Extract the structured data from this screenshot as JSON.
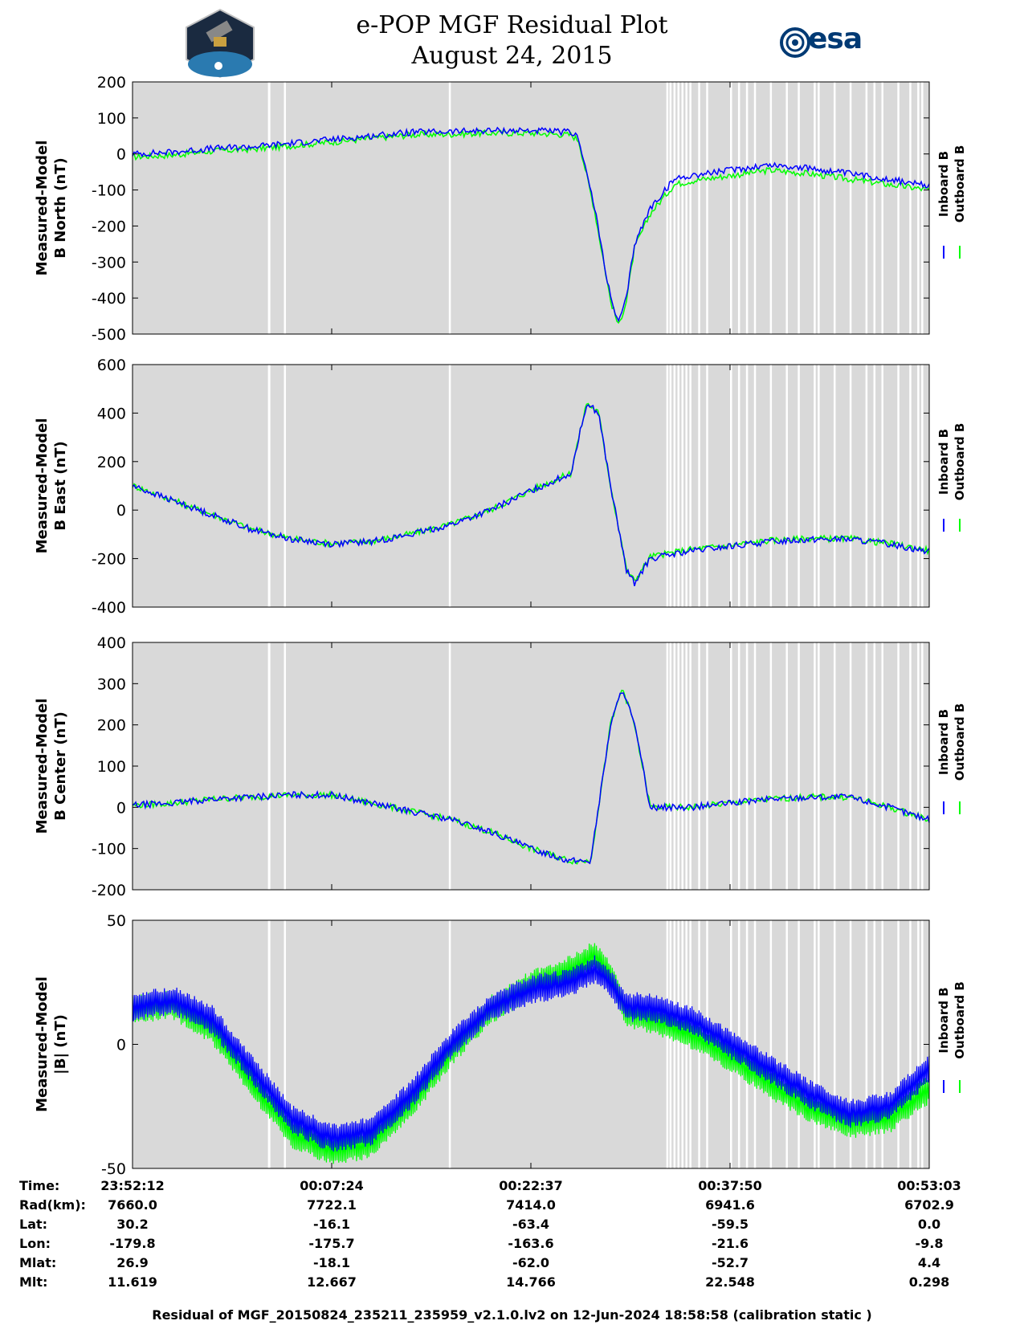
{
  "header": {
    "title_line1": "e-POP MGF Residual Plot",
    "title_line2": "August 24, 2015",
    "logo_left": "cassiope",
    "logo_right": "esa"
  },
  "colors": {
    "inboard": "#0000ff",
    "outboard": "#00ff00",
    "background": "#d9d9d9",
    "gap": "#ffffff"
  },
  "chart_data": [
    {
      "type": "line",
      "name": "b-north",
      "ylabel_line1": "Measured-Model",
      "ylabel_line2": "B North (nT)",
      "ylim": [
        -500,
        200
      ],
      "yticks": [
        "200",
        "100",
        "0",
        "-100",
        "-200",
        "-300",
        "-400",
        "-500"
      ],
      "legend": [
        "Inboard B",
        "Outboard B"
      ],
      "series": [
        {
          "name": "Inboard B",
          "x": [
            0,
            0.05,
            0.1,
            0.15,
            0.2,
            0.25,
            0.3,
            0.35,
            0.4,
            0.45,
            0.5,
            0.55,
            0.56,
            0.58,
            0.6,
            0.61,
            0.62,
            0.63,
            0.65,
            0.68,
            0.7,
            0.75,
            0.8,
            0.85,
            0.9,
            0.95,
            1.0
          ],
          "values": [
            0,
            5,
            15,
            20,
            30,
            40,
            50,
            60,
            62,
            65,
            65,
            60,
            45,
            -150,
            -400,
            -470,
            -400,
            -250,
            -150,
            -70,
            -60,
            -45,
            -30,
            -40,
            -55,
            -70,
            -90
          ]
        },
        {
          "name": "Outboard B",
          "x": [
            0,
            0.05,
            0.1,
            0.15,
            0.2,
            0.25,
            0.3,
            0.35,
            0.4,
            0.45,
            0.5,
            0.55,
            0.56,
            0.58,
            0.6,
            0.61,
            0.62,
            0.63,
            0.65,
            0.68,
            0.7,
            0.75,
            0.8,
            0.85,
            0.9,
            0.95,
            1.0
          ],
          "values": [
            -8,
            -3,
            8,
            13,
            23,
            33,
            43,
            53,
            55,
            58,
            58,
            53,
            38,
            -157,
            -407,
            -477,
            -407,
            -262,
            -165,
            -85,
            -75,
            -60,
            -45,
            -55,
            -70,
            -85,
            -100
          ]
        }
      ]
    },
    {
      "type": "line",
      "name": "b-east",
      "ylabel_line1": "Measured-Model",
      "ylabel_line2": "B East (nT)",
      "ylim": [
        -400,
        600
      ],
      "yticks": [
        "600",
        "400",
        "200",
        "0",
        "-200",
        "-400"
      ],
      "legend": [
        "Inboard B",
        "Outboard B"
      ],
      "series": [
        {
          "name": "Inboard B",
          "x": [
            0,
            0.05,
            0.1,
            0.15,
            0.2,
            0.25,
            0.3,
            0.35,
            0.4,
            0.45,
            0.5,
            0.55,
            0.57,
            0.585,
            0.6,
            0.62,
            0.63,
            0.65,
            0.7,
            0.75,
            0.8,
            0.85,
            0.9,
            0.95,
            1.0
          ],
          "values": [
            100,
            40,
            -20,
            -80,
            -120,
            -140,
            -130,
            -100,
            -60,
            0,
            80,
            150,
            440,
            400,
            100,
            -250,
            -300,
            -200,
            -170,
            -150,
            -130,
            -120,
            -120,
            -140,
            -170
          ]
        },
        {
          "name": "Outboard B",
          "x": [
            0,
            0.05,
            0.1,
            0.15,
            0.2,
            0.25,
            0.3,
            0.35,
            0.4,
            0.45,
            0.5,
            0.55,
            0.57,
            0.585,
            0.6,
            0.62,
            0.63,
            0.65,
            0.7,
            0.75,
            0.8,
            0.85,
            0.9,
            0.95,
            1.0
          ],
          "values": [
            102,
            42,
            -18,
            -78,
            -118,
            -138,
            -128,
            -98,
            -58,
            2,
            82,
            152,
            442,
            402,
            102,
            -245,
            -292,
            -192,
            -162,
            -145,
            -125,
            -117,
            -118,
            -138,
            -166
          ]
        }
      ]
    },
    {
      "type": "line",
      "name": "b-center",
      "ylabel_line1": "Measured-Model",
      "ylabel_line2": "B Center (nT)",
      "ylim": [
        -200,
        400
      ],
      "yticks": [
        "400",
        "300",
        "200",
        "100",
        "0",
        "-100",
        "-200"
      ],
      "legend": [
        "Inboard B",
        "Outboard B"
      ],
      "series": [
        {
          "name": "Inboard B",
          "x": [
            0,
            0.05,
            0.1,
            0.15,
            0.2,
            0.25,
            0.3,
            0.35,
            0.4,
            0.45,
            0.5,
            0.55,
            0.575,
            0.6,
            0.615,
            0.63,
            0.65,
            0.7,
            0.75,
            0.8,
            0.85,
            0.9,
            0.95,
            1.0
          ],
          "values": [
            5,
            10,
            20,
            25,
            30,
            30,
            10,
            -10,
            -30,
            -60,
            -100,
            -130,
            -130,
            200,
            290,
            200,
            0,
            0,
            10,
            20,
            25,
            25,
            0,
            -30
          ]
        },
        {
          "name": "Outboard B",
          "x": [
            0,
            0.05,
            0.1,
            0.15,
            0.2,
            0.25,
            0.3,
            0.35,
            0.4,
            0.45,
            0.5,
            0.55,
            0.575,
            0.6,
            0.615,
            0.63,
            0.65,
            0.7,
            0.75,
            0.8,
            0.85,
            0.9,
            0.95,
            1.0
          ],
          "values": [
            5,
            10,
            20,
            25,
            30,
            30,
            10,
            -10,
            -30,
            -60,
            -100,
            -130,
            -130,
            200,
            290,
            200,
            0,
            0,
            10,
            20,
            25,
            25,
            0,
            -30
          ]
        }
      ]
    },
    {
      "type": "line",
      "name": "b-magnitude",
      "ylabel_line1": "Measured-Model",
      "ylabel_line2": "|B| (nT)",
      "ylim": [
        -50,
        50
      ],
      "yticks": [
        "50",
        "0",
        "-50"
      ],
      "legend": [
        "Inboard B",
        "Outboard B"
      ],
      "series": [
        {
          "name": "Inboard B",
          "x": [
            0,
            0.05,
            0.1,
            0.15,
            0.2,
            0.25,
            0.3,
            0.35,
            0.4,
            0.45,
            0.5,
            0.55,
            0.58,
            0.6,
            0.62,
            0.65,
            0.7,
            0.75,
            0.8,
            0.85,
            0.9,
            0.95,
            1.0
          ],
          "values": [
            15,
            18,
            10,
            -10,
            -30,
            -38,
            -35,
            -20,
            0,
            15,
            22,
            25,
            30,
            25,
            15,
            15,
            10,
            0,
            -10,
            -20,
            -28,
            -25,
            -10
          ]
        },
        {
          "name": "Outboard B",
          "x": [
            0,
            0.05,
            0.1,
            0.15,
            0.2,
            0.25,
            0.3,
            0.35,
            0.4,
            0.45,
            0.5,
            0.55,
            0.58,
            0.6,
            0.62,
            0.65,
            0.7,
            0.75,
            0.8,
            0.85,
            0.9,
            0.95,
            1.0
          ],
          "values": [
            14,
            16,
            6,
            -16,
            -36,
            -43,
            -40,
            -24,
            -3,
            14,
            24,
            30,
            36,
            28,
            13,
            10,
            4,
            -5,
            -16,
            -26,
            -32,
            -30,
            -18
          ]
        }
      ]
    }
  ],
  "info_table": {
    "labels": [
      "Time:",
      "Rad(km):",
      "Lat:",
      "Lon:",
      "Mlat:",
      "Mlt:"
    ],
    "columns": [
      [
        "23:52:12",
        "7660.0",
        "30.2",
        "-179.8",
        "26.9",
        "11.619"
      ],
      [
        "00:07:24",
        "7722.1",
        "-16.1",
        "-175.7",
        "-18.1",
        "12.667"
      ],
      [
        "00:22:37",
        "7414.0",
        "-63.4",
        "-163.6",
        "-62.0",
        "14.766"
      ],
      [
        "00:37:50",
        "6941.6",
        "-59.5",
        "-21.6",
        "-52.7",
        "22.548"
      ],
      [
        "00:53:03",
        "6702.9",
        "0.0",
        "-9.8",
        "4.4",
        "0.298"
      ]
    ]
  },
  "footer": "Residual of MGF_20150824_235211_235959_v2.1.0.lv2 on 12-Jun-2024 18:58:58 (calibration static )"
}
